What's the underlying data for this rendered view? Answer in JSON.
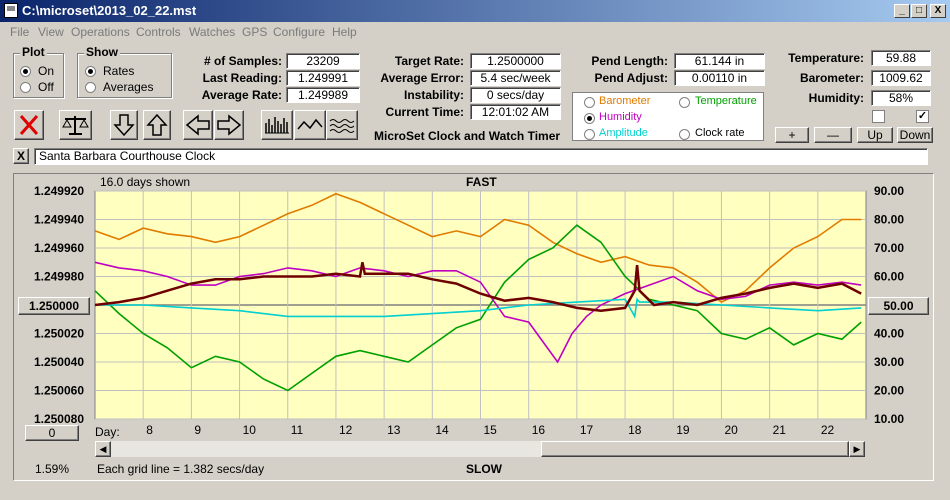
{
  "window": {
    "title": "C:\\microset\\2013_02_22.mst",
    "min_icon": "minimize-icon",
    "max_icon": "maximize-icon",
    "close_icon": "close-icon",
    "min_glyph": "_",
    "max_glyph": "□",
    "close_glyph": "X"
  },
  "menu": [
    "File",
    "View",
    "Operations",
    "Controls",
    "Watches",
    "GPS",
    "Configure",
    "Help"
  ],
  "plot_group": {
    "title": "Plot",
    "options": [
      "On",
      "Off"
    ],
    "selected": "On"
  },
  "show_group": {
    "title": "Show",
    "options": [
      "Rates",
      "Averages"
    ],
    "selected": "Rates"
  },
  "stats": {
    "samples_label": "# of Samples:",
    "samples": "23209",
    "last_label": "Last Reading:",
    "last": "1.249991",
    "avg_rate_label": "Average Rate:",
    "avg_rate": "1.249989",
    "target_label": "Target Rate:",
    "target": "1.2500000",
    "avg_err_label": "Average Error:",
    "avg_err": "5.4 sec/week",
    "instab_label": "Instability:",
    "instab": "0 secs/day",
    "time_label": "Current Time:",
    "time": "12:01:02 AM",
    "pend_len_label": "Pend Length:",
    "pend_len": "61.144 in",
    "pend_adj_label": "Pend Adjust:",
    "pend_adj": "0.00110 in",
    "temp_label": "Temperature:",
    "temp": "59.88",
    "baro_label": "Barometer:",
    "baro": "1009.62",
    "hum_label": "Humidity:",
    "hum": "58%"
  },
  "subtitle": "MicroSet Clock and Watch Timer",
  "sensor_options": [
    {
      "label": "Barometer",
      "color": "#e07b00"
    },
    {
      "label": "Temperature",
      "color": "#00a000"
    },
    {
      "label": "Humidity",
      "color": "#c000c0"
    },
    {
      "label": "Amplitude",
      "color": "#00d0d0"
    },
    {
      "label": "Clock rate",
      "color": "#000000"
    }
  ],
  "sensor_selected": "Humidity",
  "side_buttons": {
    "plus": "+",
    "minus": "—",
    "up": "Up",
    "down": "Down"
  },
  "toolbar_icons": [
    "clear-icon",
    "balance-icon",
    "arrow-down-icon",
    "arrow-up-icon",
    "arrow-left-icon",
    "arrow-right-icon",
    "bars-icon",
    "wave-icon",
    "squiggle-icon"
  ],
  "note": {
    "close_glyph": "X",
    "text": "Santa Barbara Courthouse Clock"
  },
  "chart_header": {
    "days_shown": "16.0 days shown",
    "top": "FAST",
    "bottom": "SLOW",
    "grid_note": "Each grid line = 1.382 secs/day",
    "percent": "1.59%",
    "center_button": "1.250000",
    "right_button": "50.00",
    "zero_button": "0",
    "day_label": "Day:"
  },
  "chart_data": {
    "type": "line",
    "x_label": "Day:",
    "days": [
      8,
      9,
      10,
      11,
      12,
      13,
      14,
      15,
      16,
      17,
      18,
      19,
      20,
      21,
      22
    ],
    "xlim": [
      7.0,
      23.0
    ],
    "left_axis": {
      "ticks": [
        "1.249920",
        "1.249940",
        "1.249960",
        "1.249980",
        "1.250000",
        "1.250020",
        "1.250040",
        "1.250060",
        "1.250080"
      ],
      "range": [
        1.24992,
        1.25008
      ],
      "inverted": true
    },
    "right_axis": {
      "ticks": [
        "90.00",
        "80.00",
        "70.00",
        "60.00",
        "50.00",
        "40.00",
        "30.00",
        "20.00",
        "10.00"
      ],
      "range": [
        90,
        10
      ]
    },
    "grid": true,
    "series": [
      {
        "name": "Barometer",
        "color": "#e07b00",
        "axis": "right",
        "x": [
          7.0,
          7.5,
          8.0,
          8.5,
          9.0,
          9.5,
          10.0,
          10.5,
          11.0,
          11.5,
          12.0,
          12.5,
          13.0,
          13.5,
          14.0,
          14.5,
          15.0,
          15.5,
          16.0,
          16.5,
          17.0,
          17.5,
          18.0,
          18.5,
          19.0,
          19.5,
          20.0,
          20.5,
          21.0,
          21.5,
          22.0,
          22.5,
          22.9
        ],
        "values": [
          76,
          73,
          77,
          75,
          74,
          72,
          74,
          78,
          82,
          85,
          89,
          86,
          82,
          78,
          74,
          76,
          74,
          80,
          78,
          72,
          68,
          65,
          67,
          64,
          63,
          58,
          51,
          55,
          63,
          70,
          74,
          80,
          80
        ]
      },
      {
        "name": "Temperature",
        "color": "#00a000",
        "axis": "right",
        "x": [
          7.0,
          7.5,
          8.0,
          8.5,
          9.0,
          9.5,
          10.0,
          10.5,
          11.0,
          11.5,
          12.0,
          12.5,
          13.0,
          13.5,
          14.0,
          14.5,
          15.0,
          15.5,
          16.0,
          16.5,
          17.0,
          17.5,
          18.0,
          18.5,
          19.0,
          19.5,
          20.0,
          20.5,
          21.0,
          21.5,
          22.0,
          22.5,
          22.9
        ],
        "values": [
          55,
          47,
          40,
          35,
          28,
          32,
          30,
          24,
          20,
          26,
          32,
          34,
          32,
          30,
          36,
          42,
          45,
          58,
          66,
          70,
          78,
          72,
          60,
          52,
          50,
          48,
          40,
          38,
          42,
          36,
          40,
          38,
          44
        ]
      },
      {
        "name": "Humidity",
        "color": "#c000c0",
        "axis": "right",
        "x": [
          7.0,
          7.5,
          8.0,
          8.5,
          9.0,
          9.5,
          10.0,
          10.5,
          11.0,
          11.5,
          12.0,
          12.5,
          13.0,
          13.5,
          14.0,
          14.5,
          15.0,
          15.5,
          16.0,
          16.3,
          16.6,
          16.9,
          17.2,
          17.5,
          18.0,
          18.5,
          19.0,
          19.5,
          20.0,
          20.5,
          21.0,
          21.5,
          22.0,
          22.5,
          22.9
        ],
        "values": [
          65,
          63,
          62,
          60,
          57,
          57,
          60,
          61,
          63,
          62,
          60,
          63,
          62,
          60,
          62,
          62,
          58,
          46,
          44,
          37,
          30,
          40,
          46,
          50,
          54,
          57,
          60,
          55,
          52,
          53,
          57,
          58,
          57,
          58,
          57
        ]
      },
      {
        "name": "Amplitude",
        "color": "#00d0d0",
        "axis": "right",
        "x": [
          7.0,
          8.0,
          9.0,
          10.0,
          11.0,
          12.0,
          13.0,
          14.0,
          15.0,
          16.0,
          17.0,
          18.0,
          18.2,
          18.25,
          18.3,
          19.0,
          20.0,
          21.0,
          22.0,
          22.9
        ],
        "values": [
          50,
          50,
          49,
          48,
          46,
          46,
          46,
          47,
          48,
          50,
          51,
          52,
          46,
          52,
          51,
          51,
          50,
          49,
          48,
          49
        ]
      },
      {
        "name": "Clock rate",
        "color": "#700000",
        "axis": "left",
        "x": [
          7.0,
          7.5,
          8.0,
          8.5,
          9.0,
          9.5,
          10.0,
          10.5,
          11.0,
          11.5,
          12.0,
          12.5,
          12.55,
          12.6,
          13.0,
          13.5,
          14.0,
          14.5,
          15.0,
          15.5,
          16.0,
          16.5,
          17.0,
          17.5,
          18.0,
          18.2,
          18.25,
          18.3,
          18.6,
          19.0,
          19.5,
          20.0,
          20.5,
          21.0,
          21.5,
          22.0,
          22.5,
          22.9
        ],
        "values": [
          1.25,
          1.249998,
          1.249995,
          1.24999,
          1.249985,
          1.249982,
          1.249982,
          1.24998,
          1.24998,
          1.24998,
          1.249978,
          1.24998,
          1.24997,
          1.249978,
          1.249978,
          1.249978,
          1.249982,
          1.249985,
          1.249992,
          1.249997,
          1.249995,
          1.249998,
          1.250002,
          1.250004,
          1.250002,
          1.24999,
          1.249972,
          1.24999,
          1.25,
          1.249998,
          1.25,
          1.249995,
          1.249992,
          1.249988,
          1.249985,
          1.249988,
          1.249985,
          1.249992
        ]
      }
    ]
  }
}
